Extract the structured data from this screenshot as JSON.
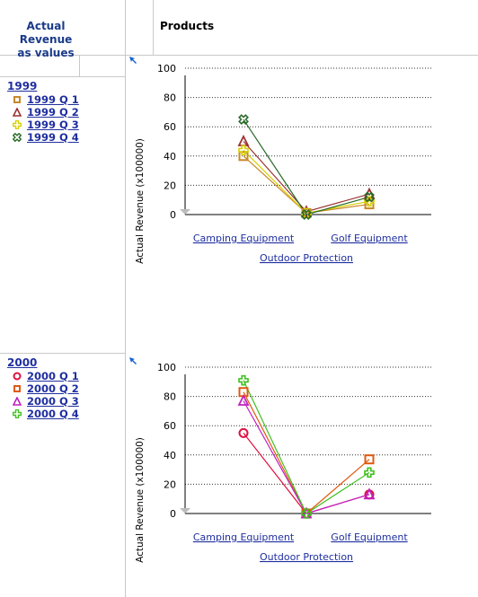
{
  "header": {
    "left_line1": "Actual Revenue",
    "left_line2": "as values",
    "products": "Products"
  },
  "groups": [
    {
      "year": "1999",
      "quarters": [
        {
          "label": "1999 Q 1",
          "marker": "square",
          "color": "#c8882a"
        },
        {
          "label": "1999 Q 2",
          "marker": "triangle",
          "color": "#9b3030"
        },
        {
          "label": "1999 Q 3",
          "marker": "plus",
          "color": "#d8d000"
        },
        {
          "label": "1999 Q 4",
          "marker": "cross",
          "color": "#2a6a2a"
        }
      ]
    },
    {
      "year": "2000",
      "quarters": [
        {
          "label": "2000 Q 1",
          "marker": "circle",
          "color": "#e01040"
        },
        {
          "label": "2000 Q 2",
          "marker": "square",
          "color": "#e05a10"
        },
        {
          "label": "2000 Q 3",
          "marker": "triangle",
          "color": "#c020c0"
        },
        {
          "label": "2000 Q 4",
          "marker": "plus",
          "color": "#40c020"
        }
      ]
    }
  ],
  "chart_data": [
    {
      "type": "line",
      "ylabel": "Actual Revenue (x100000)",
      "ylim": [
        0,
        100
      ],
      "yticks": [
        0,
        20,
        40,
        60,
        80,
        100
      ],
      "grid": "dotted horizontal",
      "categories": [
        "Camping Equipment",
        "Outdoor Protection",
        "Golf Equipment"
      ],
      "series": [
        {
          "name": "1999 Q 1",
          "marker": "square",
          "color": "#c8882a",
          "values": [
            40,
            1,
            7
          ]
        },
        {
          "name": "1999 Q 2",
          "marker": "triangle",
          "color": "#9b3030",
          "values": [
            50,
            2,
            14
          ]
        },
        {
          "name": "1999 Q 3",
          "marker": "plus",
          "color": "#d8d000",
          "values": [
            44,
            1,
            9
          ]
        },
        {
          "name": "1999 Q 4",
          "marker": "cross",
          "color": "#2a6a2a",
          "values": [
            65,
            0,
            12
          ]
        }
      ]
    },
    {
      "type": "line",
      "ylabel": "Actual Revenue (x100000)",
      "ylim": [
        0,
        100
      ],
      "yticks": [
        0,
        20,
        40,
        60,
        80,
        100
      ],
      "grid": "dotted horizontal",
      "categories": [
        "Camping Equipment",
        "Outdoor Protection",
        "Golf Equipment"
      ],
      "series": [
        {
          "name": "2000 Q 1",
          "marker": "circle",
          "color": "#e01040",
          "values": [
            55,
            0,
            13
          ]
        },
        {
          "name": "2000 Q 2",
          "marker": "square",
          "color": "#e05a10",
          "values": [
            83,
            0,
            37
          ]
        },
        {
          "name": "2000 Q 3",
          "marker": "triangle",
          "color": "#c020c0",
          "values": [
            77,
            0,
            13
          ]
        },
        {
          "name": "2000 Q 4",
          "marker": "plus",
          "color": "#40c020",
          "values": [
            91,
            0,
            28
          ]
        }
      ]
    }
  ]
}
